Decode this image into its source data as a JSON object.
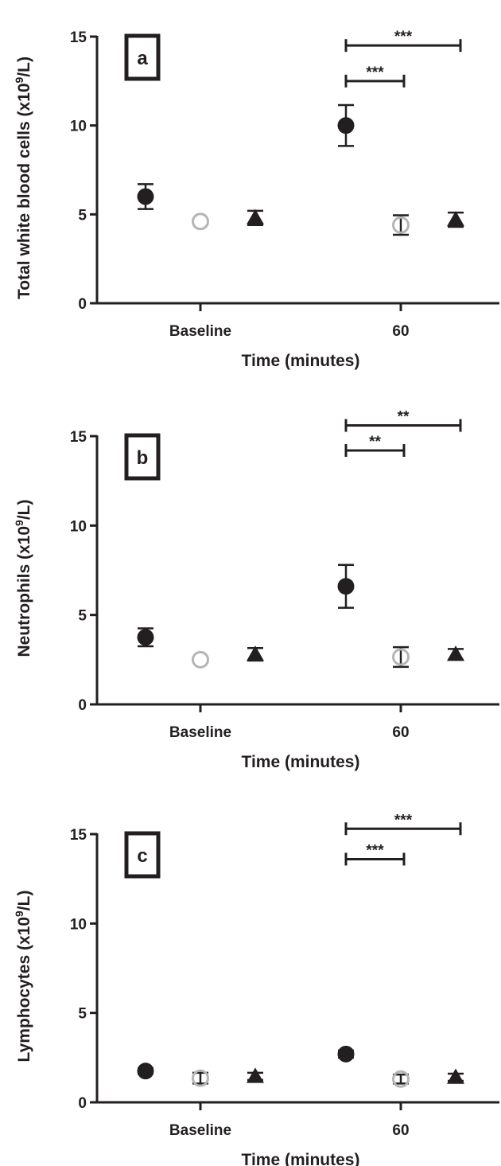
{
  "chart_data": [
    {
      "type": "scatter",
      "panel_label": "a",
      "ylabel": "Total white blood cells (x10",
      "ylabel_exp": "9",
      "ylabel_tail": "/L)",
      "xlabel": "Time (minutes)",
      "categories": [
        "Baseline",
        "60"
      ],
      "ylim": [
        0,
        15
      ],
      "yticks": [
        "0",
        "5",
        "10",
        "15"
      ],
      "series": [
        {
          "marker": "filled-circle",
          "color": "#231f20",
          "values": [
            6.0,
            10.0
          ],
          "errors": [
            0.7,
            1.15
          ]
        },
        {
          "marker": "open-circle",
          "color": "#b5b5b5",
          "values": [
            4.6,
            4.4
          ],
          "errors": [
            0,
            0.55
          ]
        },
        {
          "marker": "filled-triangle",
          "color": "#231f20",
          "values": [
            4.8,
            4.7
          ],
          "errors": [
            0.4,
            0.4
          ]
        }
      ],
      "significance": [
        {
          "label": "***",
          "from_series": 0,
          "to_series": 1,
          "category": 1,
          "y": 12.5
        },
        {
          "label": "***",
          "from_series": 0,
          "to_series": 2,
          "category": 1,
          "y": 14.5
        }
      ]
    },
    {
      "type": "scatter",
      "panel_label": "b",
      "ylabel": "Neutrophils (x10",
      "ylabel_exp": "9",
      "ylabel_tail": "/L)",
      "xlabel": "Time (minutes)",
      "categories": [
        "Baseline",
        "60"
      ],
      "ylim": [
        0,
        15
      ],
      "yticks": [
        "0",
        "5",
        "10",
        "15"
      ],
      "series": [
        {
          "marker": "filled-circle",
          "color": "#231f20",
          "values": [
            3.75,
            6.6
          ],
          "errors": [
            0.5,
            1.2
          ]
        },
        {
          "marker": "open-circle",
          "color": "#b5b5b5",
          "values": [
            2.5,
            2.65
          ],
          "errors": [
            0,
            0.55
          ]
        },
        {
          "marker": "filled-triangle",
          "color": "#231f20",
          "values": [
            2.8,
            2.8
          ],
          "errors": [
            0.35,
            0.3
          ]
        }
      ],
      "significance": [
        {
          "label": "**",
          "from_series": 0,
          "to_series": 1,
          "category": 1,
          "y": 14.2
        },
        {
          "label": "**",
          "from_series": 0,
          "to_series": 2,
          "category": 1,
          "y": 15.6
        }
      ]
    },
    {
      "type": "scatter",
      "panel_label": "c",
      "ylabel": "Lymphocytes  (x10",
      "ylabel_exp": "9",
      "ylabel_tail": "/L)",
      "xlabel": "Time (minutes)",
      "categories": [
        "Baseline",
        "60"
      ],
      "ylim": [
        0,
        15
      ],
      "yticks": [
        "0",
        "5",
        "10",
        "15"
      ],
      "series": [
        {
          "marker": "filled-circle",
          "color": "#231f20",
          "values": [
            1.75,
            2.7
          ],
          "errors": [
            0.15,
            0.2
          ]
        },
        {
          "marker": "open-circle",
          "color": "#b5b5b5",
          "values": [
            1.35,
            1.3
          ],
          "errors": [
            0.3,
            0.25
          ]
        },
        {
          "marker": "filled-triangle",
          "color": "#231f20",
          "values": [
            1.45,
            1.4
          ],
          "errors": [
            0.2,
            0.2
          ]
        }
      ],
      "significance": [
        {
          "label": "***",
          "from_series": 0,
          "to_series": 1,
          "category": 1,
          "y": 13.6
        },
        {
          "label": "***",
          "from_series": 0,
          "to_series": 2,
          "category": 1,
          "y": 15.3
        }
      ]
    }
  ]
}
